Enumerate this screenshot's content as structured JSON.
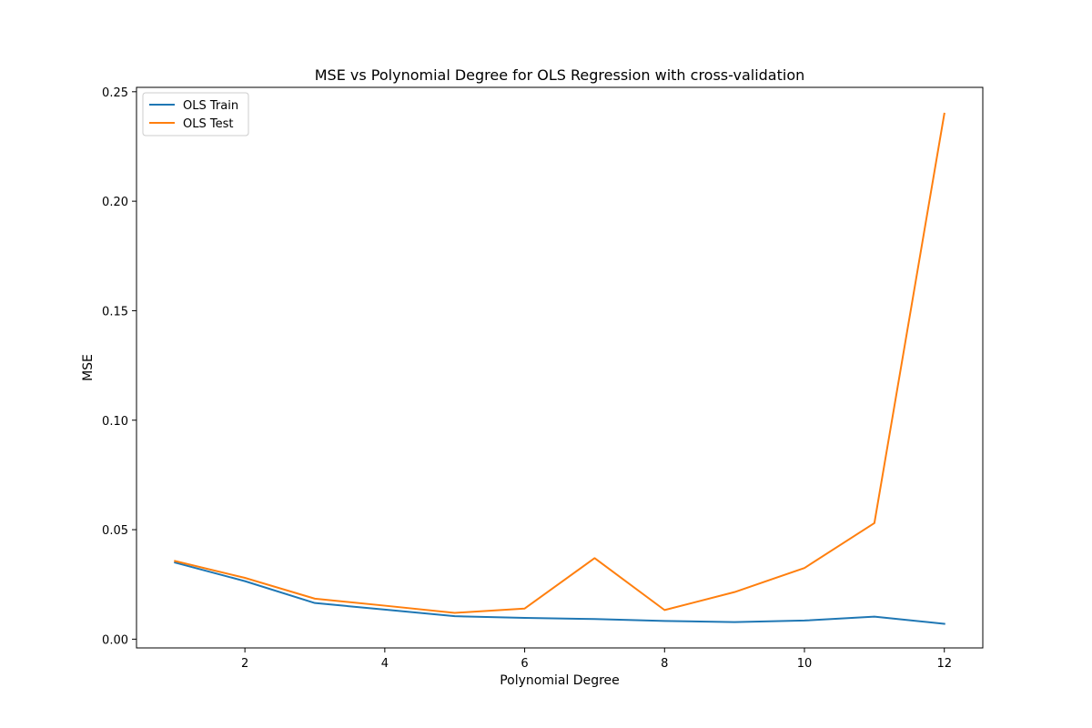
{
  "chart_data": {
    "type": "line",
    "title": "MSE vs Polynomial Degree for OLS Regression with cross-validation",
    "xlabel": "Polynomial Degree",
    "ylabel": "MSE",
    "x": [
      1,
      2,
      3,
      4,
      5,
      6,
      7,
      8,
      9,
      10,
      11,
      12
    ],
    "xlim": [
      0.45,
      12.55
    ],
    "ylim": [
      -0.004,
      0.252
    ],
    "xticks": [
      2,
      4,
      6,
      8,
      10,
      12
    ],
    "xtick_labels": [
      "2",
      "4",
      "6",
      "8",
      "10",
      "12"
    ],
    "yticks": [
      0.0,
      0.05,
      0.1,
      0.15,
      0.2,
      0.25
    ],
    "ytick_labels": [
      "0.00",
      "0.05",
      "0.10",
      "0.15",
      "0.20",
      "0.25"
    ],
    "grid": false,
    "legend_position": "top-left",
    "series": [
      {
        "name": "OLS Train",
        "color": "#1f77b4",
        "values": [
          0.035,
          0.0265,
          0.0165,
          0.0135,
          0.0105,
          0.0097,
          0.0092,
          0.0083,
          0.0078,
          0.0085,
          0.0103,
          0.007
        ]
      },
      {
        "name": "OLS Test",
        "color": "#ff7f0e",
        "values": [
          0.0357,
          0.028,
          0.0185,
          0.0153,
          0.012,
          0.014,
          0.037,
          0.0133,
          0.0215,
          0.0325,
          0.053,
          0.24
        ]
      }
    ]
  }
}
